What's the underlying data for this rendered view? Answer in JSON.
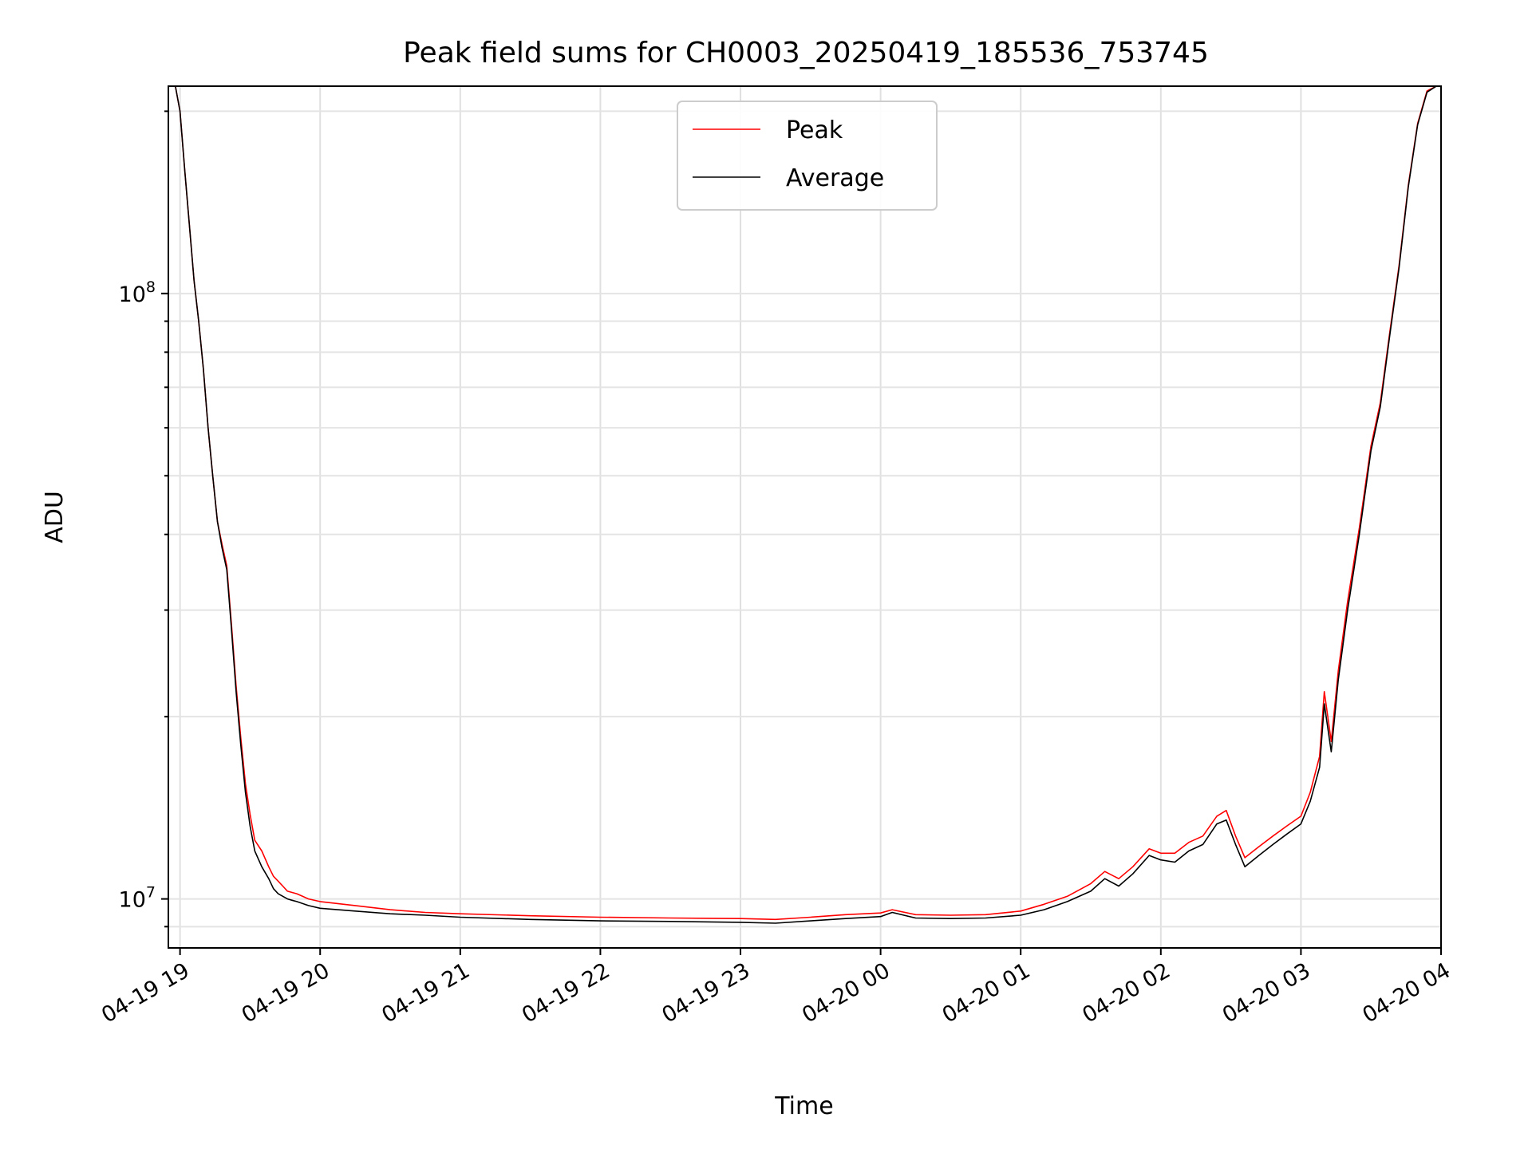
{
  "chart_data": {
    "type": "line",
    "title": "Peak field sums for CH0003_20250419_185536_753745",
    "xlabel": "Time",
    "ylabel": "ADU",
    "yscale": "log",
    "ylim": [
      8300000,
      220000000
    ],
    "xlim": [
      "2025-04-19 18:55",
      "2025-04-20 04:00"
    ],
    "x_ticks": [
      "04-19 19",
      "04-19 20",
      "04-19 21",
      "04-19 22",
      "04-19 23",
      "04-20 00",
      "04-20 01",
      "04-20 02",
      "04-20 03",
      "04-20 04"
    ],
    "y_ticks": [
      {
        "label_base": "10",
        "label_exp": "7",
        "value": 10000000
      },
      {
        "label_base": "10",
        "label_exp": "8",
        "value": 100000000
      }
    ],
    "grid": true,
    "legend": {
      "position": "top-center",
      "entries": [
        {
          "name": "Peak",
          "color": "#ff0000"
        },
        {
          "name": "Average",
          "color": "#000000"
        }
      ]
    },
    "series": [
      {
        "name": "Average",
        "color": "#000000",
        "x": [
          "2025-04-19 18:58",
          "2025-04-19 19:00",
          "2025-04-19 19:02",
          "2025-04-19 19:04",
          "2025-04-19 19:06",
          "2025-04-19 19:08",
          "2025-04-19 19:10",
          "2025-04-19 19:12",
          "2025-04-19 19:14",
          "2025-04-19 19:16",
          "2025-04-19 19:18",
          "2025-04-19 19:20",
          "2025-04-19 19:22",
          "2025-04-19 19:24",
          "2025-04-19 19:26",
          "2025-04-19 19:28",
          "2025-04-19 19:30",
          "2025-04-19 19:32",
          "2025-04-19 19:35",
          "2025-04-19 19:38",
          "2025-04-19 19:40",
          "2025-04-19 19:42",
          "2025-04-19 19:44",
          "2025-04-19 19:46",
          "2025-04-19 19:48",
          "2025-04-19 19:50",
          "2025-04-19 19:55",
          "2025-04-19 20:00",
          "2025-04-19 20:15",
          "2025-04-19 20:30",
          "2025-04-19 20:45",
          "2025-04-19 21:00",
          "2025-04-19 21:30",
          "2025-04-19 22:00",
          "2025-04-19 22:30",
          "2025-04-19 23:00",
          "2025-04-19 23:15",
          "2025-04-19 23:30",
          "2025-04-19 23:45",
          "2025-04-20 00:00",
          "2025-04-20 00:05",
          "2025-04-20 00:15",
          "2025-04-20 00:30",
          "2025-04-20 00:45",
          "2025-04-20 01:00",
          "2025-04-20 01:10",
          "2025-04-20 01:20",
          "2025-04-20 01:30",
          "2025-04-20 01:36",
          "2025-04-20 01:42",
          "2025-04-20 01:48",
          "2025-04-20 01:55",
          "2025-04-20 02:00",
          "2025-04-20 02:06",
          "2025-04-20 02:12",
          "2025-04-20 02:18",
          "2025-04-20 02:24",
          "2025-04-20 02:28",
          "2025-04-20 02:32",
          "2025-04-20 02:36",
          "2025-04-20 02:42",
          "2025-04-20 02:48",
          "2025-04-20 02:54",
          "2025-04-20 03:00",
          "2025-04-20 03:04",
          "2025-04-20 03:08",
          "2025-04-20 03:10",
          "2025-04-20 03:13",
          "2025-04-20 03:16",
          "2025-04-20 03:20",
          "2025-04-20 03:25",
          "2025-04-20 03:30",
          "2025-04-20 03:34",
          "2025-04-20 03:38",
          "2025-04-20 03:42",
          "2025-04-20 03:46",
          "2025-04-20 03:50",
          "2025-04-20 03:54",
          "2025-04-20 03:58"
        ],
        "y": [
          220000000,
          200000000,
          160000000,
          130000000,
          105000000,
          90000000,
          75000000,
          60000000,
          50000000,
          42000000,
          38000000,
          35000000,
          28000000,
          22000000,
          18000000,
          15000000,
          13200000,
          12000000,
          11300000,
          10800000,
          10400000,
          10200000,
          10100000,
          10000000,
          9950000,
          9900000,
          9750000,
          9650000,
          9550000,
          9450000,
          9400000,
          9330000,
          9250000,
          9200000,
          9180000,
          9150000,
          9120000,
          9200000,
          9280000,
          9350000,
          9500000,
          9300000,
          9280000,
          9300000,
          9400000,
          9600000,
          9900000,
          10300000,
          10800000,
          10500000,
          11000000,
          11800000,
          11600000,
          11500000,
          12000000,
          12300000,
          13300000,
          13500000,
          12300000,
          11300000,
          11800000,
          12300000,
          12800000,
          13300000,
          14500000,
          16500000,
          21000000,
          17500000,
          23000000,
          30000000,
          40000000,
          55000000,
          65000000,
          85000000,
          110000000,
          150000000,
          190000000,
          215000000,
          220000000
        ]
      },
      {
        "name": "Peak",
        "color": "#ff0000",
        "x": [
          "2025-04-19 18:58",
          "2025-04-19 19:00",
          "2025-04-19 19:02",
          "2025-04-19 19:04",
          "2025-04-19 19:06",
          "2025-04-19 19:08",
          "2025-04-19 19:10",
          "2025-04-19 19:12",
          "2025-04-19 19:14",
          "2025-04-19 19:16",
          "2025-04-19 19:18",
          "2025-04-19 19:20",
          "2025-04-19 19:22",
          "2025-04-19 19:24",
          "2025-04-19 19:26",
          "2025-04-19 19:28",
          "2025-04-19 19:30",
          "2025-04-19 19:32",
          "2025-04-19 19:35",
          "2025-04-19 19:38",
          "2025-04-19 19:40",
          "2025-04-19 19:42",
          "2025-04-19 19:44",
          "2025-04-19 19:46",
          "2025-04-19 19:48",
          "2025-04-19 19:50",
          "2025-04-19 19:55",
          "2025-04-19 20:00",
          "2025-04-19 20:15",
          "2025-04-19 20:30",
          "2025-04-19 20:45",
          "2025-04-19 21:00",
          "2025-04-19 21:30",
          "2025-04-19 22:00",
          "2025-04-19 22:30",
          "2025-04-19 23:00",
          "2025-04-19 23:15",
          "2025-04-19 23:30",
          "2025-04-19 23:45",
          "2025-04-20 00:00",
          "2025-04-20 00:05",
          "2025-04-20 00:15",
          "2025-04-20 00:30",
          "2025-04-20 00:45",
          "2025-04-20 01:00",
          "2025-04-20 01:10",
          "2025-04-20 01:20",
          "2025-04-20 01:30",
          "2025-04-20 01:36",
          "2025-04-20 01:42",
          "2025-04-20 01:48",
          "2025-04-20 01:55",
          "2025-04-20 02:00",
          "2025-04-20 02:06",
          "2025-04-20 02:12",
          "2025-04-20 02:18",
          "2025-04-20 02:24",
          "2025-04-20 02:28",
          "2025-04-20 02:32",
          "2025-04-20 02:36",
          "2025-04-20 02:42",
          "2025-04-20 02:48",
          "2025-04-20 02:54",
          "2025-04-20 03:00",
          "2025-04-20 03:04",
          "2025-04-20 03:08",
          "2025-04-20 03:10",
          "2025-04-20 03:13",
          "2025-04-20 03:16",
          "2025-04-20 03:20",
          "2025-04-20 03:25",
          "2025-04-20 03:30",
          "2025-04-20 03:34",
          "2025-04-20 03:38",
          "2025-04-20 03:42",
          "2025-04-20 03:46",
          "2025-04-20 03:50",
          "2025-04-20 03:54",
          "2025-04-20 03:58"
        ],
        "y": [
          220000000,
          200000000,
          160000000,
          130000000,
          105000000,
          90000000,
          75000000,
          60000000,
          50000000,
          42000000,
          38500000,
          35500000,
          28500000,
          22500000,
          18500000,
          15500000,
          13800000,
          12500000,
          12000000,
          11300000,
          10900000,
          10700000,
          10500000,
          10300000,
          10250000,
          10200000,
          10000000,
          9900000,
          9750000,
          9600000,
          9500000,
          9450000,
          9380000,
          9330000,
          9300000,
          9280000,
          9250000,
          9330000,
          9420000,
          9480000,
          9600000,
          9420000,
          9400000,
          9420000,
          9550000,
          9800000,
          10100000,
          10600000,
          11100000,
          10800000,
          11300000,
          12100000,
          11900000,
          11900000,
          12400000,
          12700000,
          13700000,
          14000000,
          12700000,
          11700000,
          12200000,
          12700000,
          13200000,
          13700000,
          15000000,
          17200000,
          22000000,
          18200000,
          23800000,
          31000000,
          41000000,
          56000000,
          66000000,
          86000000,
          111000000,
          151000000,
          191000000,
          216000000,
          220000000
        ]
      }
    ]
  }
}
